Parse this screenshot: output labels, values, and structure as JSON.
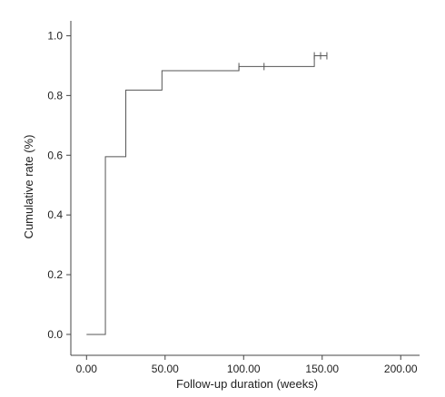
{
  "chart_data": {
    "type": "line",
    "subtype": "step",
    "xlabel": "Follow-up duration (weeks)",
    "ylabel": "Cumulative rate (%)",
    "xlim": [
      -10,
      212
    ],
    "ylim": [
      -0.07,
      1.05
    ],
    "x_ticks": [
      0,
      50,
      100,
      150,
      200
    ],
    "x_tick_labels": [
      "0.00",
      "50.00",
      "100.00",
      "150.00",
      "200.00"
    ],
    "y_ticks": [
      0.0,
      0.2,
      0.4,
      0.6,
      0.8,
      1.0
    ],
    "y_tick_labels": [
      "0.0",
      "0.2",
      "0.4",
      "0.6",
      "0.8",
      "1.0"
    ],
    "grid": false,
    "series": [
      {
        "steps": [
          {
            "x": 0,
            "y": 0.0
          },
          {
            "x": 12,
            "y": 0.595
          },
          {
            "x": 25,
            "y": 0.818
          },
          {
            "x": 48,
            "y": 0.883
          },
          {
            "x": 97,
            "y": 0.897
          },
          {
            "x": 145,
            "y": 0.933
          }
        ],
        "end_x": 153,
        "censored": [
          {
            "x": 97,
            "y": 0.897
          },
          {
            "x": 113,
            "y": 0.897
          },
          {
            "x": 145,
            "y": 0.933
          },
          {
            "x": 149,
            "y": 0.933
          },
          {
            "x": 153,
            "y": 0.933
          }
        ]
      }
    ]
  }
}
